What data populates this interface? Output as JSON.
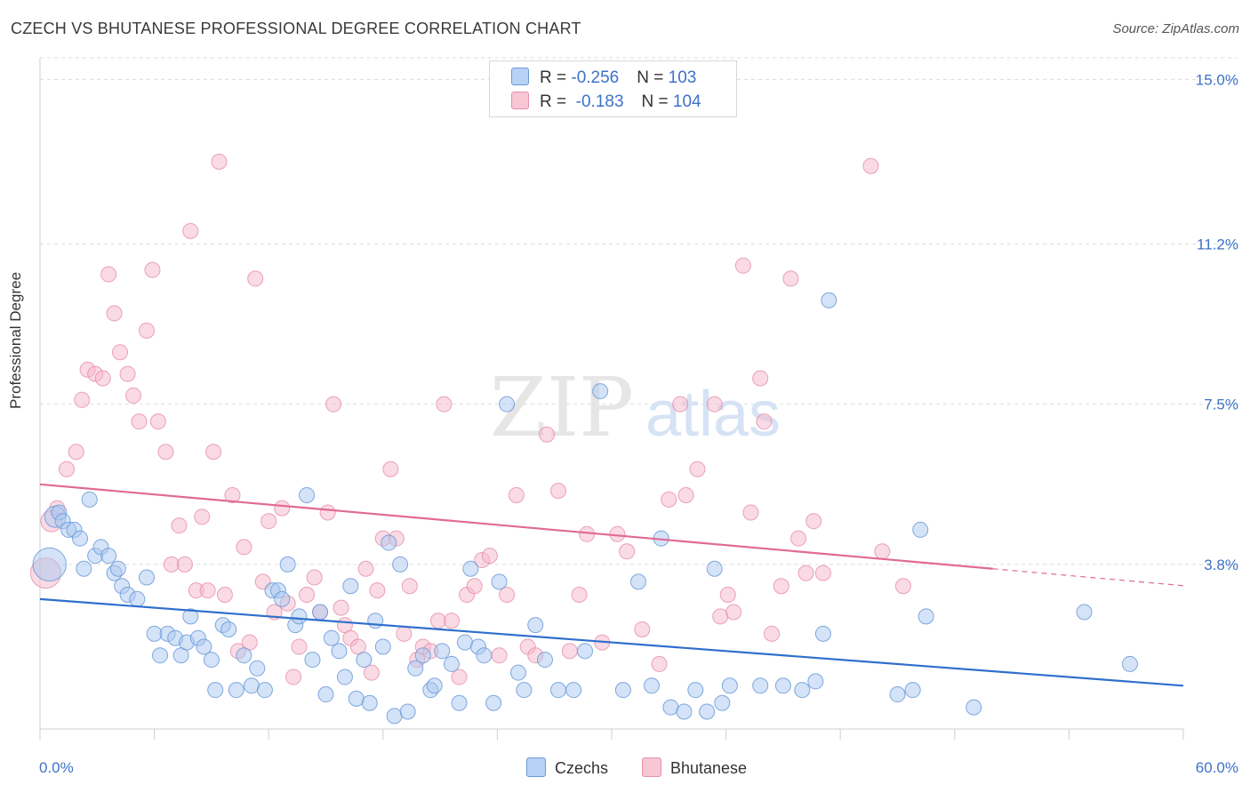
{
  "title": "CZECH VS BHUTANESE PROFESSIONAL DEGREE CORRELATION CHART",
  "source": "Source: ZipAtlas.com",
  "watermark": {
    "zip": "ZIP",
    "atlas": "atlas"
  },
  "legend": {
    "czech": {
      "r_label": "R = ",
      "r_value": "-0.256",
      "n_label": "N = ",
      "n_value": "103"
    },
    "bhutanese": {
      "r_label": "R = ",
      "r_value": " -0.183",
      "n_label": "N = ",
      "n_value": "104"
    }
  },
  "bottom_legend": {
    "czech": "Czechs",
    "bhutanese": "Bhutanese"
  },
  "colors": {
    "czech_fill": "#aac8f0",
    "czech_stroke": "#6b9ad8",
    "czech_line": "#2f6fcc",
    "bhutanese_fill": "#f5b8cb",
    "bhutanese_stroke": "#e890ac",
    "bhutanese_line": "#e06a93",
    "axis_label": "#3d72c8",
    "grid": "#dddddd"
  },
  "chart_data": {
    "type": "scatter",
    "title": "CZECH VS BHUTANESE PROFESSIONAL DEGREE CORRELATION CHART",
    "xlabel": "",
    "ylabel": "Professional Degree",
    "xlim": [
      0,
      60
    ],
    "ylim": [
      0,
      15.5
    ],
    "x_tick_labels": [
      "0.0%",
      "60.0%"
    ],
    "y_ticks": [
      3.8,
      7.5,
      11.2,
      15.0
    ],
    "y_tick_labels": [
      "3.8%",
      "7.5%",
      "11.2%",
      "15.0%"
    ],
    "grid": "horizontal dashed",
    "series": [
      {
        "name": "Czechs",
        "trend": {
          "x0": 0,
          "y0": 3.0,
          "x1": 60,
          "y1": 1.0
        },
        "points": [
          [
            0.5,
            3.8,
            2.2
          ],
          [
            0.8,
            4.9,
            1.4
          ],
          [
            1.0,
            5.0,
            1
          ],
          [
            1.2,
            4.8,
            1
          ],
          [
            1.5,
            4.6,
            1
          ],
          [
            1.8,
            4.6,
            1
          ],
          [
            2.1,
            4.4,
            1
          ],
          [
            2.3,
            3.7,
            1
          ],
          [
            2.6,
            5.3,
            1
          ],
          [
            2.9,
            4.0,
            1
          ],
          [
            3.2,
            4.2,
            1
          ],
          [
            3.6,
            4.0,
            1
          ],
          [
            3.9,
            3.6,
            1
          ],
          [
            4.1,
            3.7,
            1
          ],
          [
            4.3,
            3.3,
            1
          ],
          [
            4.6,
            3.1,
            1
          ],
          [
            5.1,
            3.0,
            1
          ],
          [
            5.6,
            3.5,
            1
          ],
          [
            6.0,
            2.2,
            1
          ],
          [
            6.3,
            1.7,
            1
          ],
          [
            6.7,
            2.2,
            1
          ],
          [
            7.1,
            2.1,
            1
          ],
          [
            7.4,
            1.7,
            1
          ],
          [
            7.7,
            2.0,
            1
          ],
          [
            7.9,
            2.6,
            1
          ],
          [
            8.3,
            2.1,
            1
          ],
          [
            8.6,
            1.9,
            1
          ],
          [
            9.0,
            1.6,
            1
          ],
          [
            9.2,
            0.9,
            1
          ],
          [
            9.6,
            2.4,
            1
          ],
          [
            9.9,
            2.3,
            1
          ],
          [
            10.3,
            0.9,
            1
          ],
          [
            10.7,
            1.7,
            1
          ],
          [
            11.1,
            1.0,
            1
          ],
          [
            11.4,
            1.4,
            1
          ],
          [
            11.8,
            0.9,
            1
          ],
          [
            12.2,
            3.2,
            1
          ],
          [
            12.5,
            3.2,
            1
          ],
          [
            12.7,
            3.0,
            1
          ],
          [
            13.0,
            3.8,
            1
          ],
          [
            13.4,
            2.4,
            1
          ],
          [
            13.6,
            2.6,
            1
          ],
          [
            14.0,
            5.4,
            1
          ],
          [
            14.3,
            1.6,
            1
          ],
          [
            14.7,
            2.7,
            1
          ],
          [
            15.0,
            0.8,
            1
          ],
          [
            15.3,
            2.1,
            1
          ],
          [
            15.7,
            1.8,
            1
          ],
          [
            16.0,
            1.2,
            1
          ],
          [
            16.3,
            3.3,
            1
          ],
          [
            16.6,
            0.7,
            1
          ],
          [
            17.0,
            1.6,
            1
          ],
          [
            17.3,
            0.6,
            1
          ],
          [
            17.6,
            2.5,
            1
          ],
          [
            18.0,
            1.9,
            1
          ],
          [
            18.3,
            4.3,
            1
          ],
          [
            18.6,
            0.3,
            1
          ],
          [
            18.9,
            3.8,
            1
          ],
          [
            19.3,
            0.4,
            1
          ],
          [
            19.7,
            1.4,
            1
          ],
          [
            20.1,
            1.7,
            1
          ],
          [
            20.5,
            0.9,
            1
          ],
          [
            20.7,
            1.0,
            1
          ],
          [
            21.1,
            1.8,
            1
          ],
          [
            21.6,
            1.5,
            1
          ],
          [
            22.0,
            0.6,
            1
          ],
          [
            22.3,
            2.0,
            1
          ],
          [
            22.6,
            3.7,
            1
          ],
          [
            23.0,
            1.9,
            1
          ],
          [
            23.3,
            1.7,
            1
          ],
          [
            23.8,
            0.6,
            1
          ],
          [
            24.1,
            3.4,
            1
          ],
          [
            24.5,
            7.5,
            1
          ],
          [
            25.1,
            1.3,
            1
          ],
          [
            25.4,
            0.9,
            1
          ],
          [
            26.0,
            2.4,
            1
          ],
          [
            26.5,
            1.6,
            1
          ],
          [
            27.2,
            0.9,
            1
          ],
          [
            28.0,
            0.9,
            1
          ],
          [
            28.6,
            1.8,
            1
          ],
          [
            29.4,
            7.8,
            1
          ],
          [
            30.6,
            0.9,
            1
          ],
          [
            31.4,
            3.4,
            1
          ],
          [
            32.1,
            1.0,
            1
          ],
          [
            32.6,
            4.4,
            1
          ],
          [
            33.1,
            0.5,
            1
          ],
          [
            33.8,
            0.4,
            1
          ],
          [
            34.4,
            0.9,
            1
          ],
          [
            35.0,
            0.4,
            1
          ],
          [
            35.4,
            3.7,
            1
          ],
          [
            35.8,
            0.6,
            1
          ],
          [
            36.2,
            1.0,
            1
          ],
          [
            37.8,
            1.0,
            1
          ],
          [
            39.0,
            1.0,
            1
          ],
          [
            40.0,
            0.9,
            1
          ],
          [
            40.7,
            1.1,
            1
          ],
          [
            41.1,
            2.2,
            1
          ],
          [
            41.4,
            9.9,
            1
          ],
          [
            45.0,
            0.8,
            1
          ],
          [
            45.8,
            0.9,
            1
          ],
          [
            46.2,
            4.6,
            1
          ],
          [
            46.5,
            2.6,
            1
          ],
          [
            49.0,
            0.5,
            1
          ],
          [
            54.8,
            2.7,
            1
          ],
          [
            57.2,
            1.5,
            1
          ]
        ]
      },
      {
        "name": "Bhutanese",
        "trend": {
          "x0": 0,
          "y0": 5.65,
          "x1": 50,
          "y1": 3.7
        },
        "points": [
          [
            0.3,
            3.6,
            2.0
          ],
          [
            0.6,
            4.8,
            1.4
          ],
          [
            0.9,
            5.1,
            1
          ],
          [
            1.4,
            6.0,
            1
          ],
          [
            1.9,
            6.4,
            1
          ],
          [
            2.2,
            7.6,
            1
          ],
          [
            2.5,
            8.3,
            1
          ],
          [
            2.9,
            8.2,
            1
          ],
          [
            3.3,
            8.1,
            1
          ],
          [
            3.6,
            10.5,
            1
          ],
          [
            3.9,
            9.6,
            1
          ],
          [
            4.2,
            8.7,
            1
          ],
          [
            4.6,
            8.2,
            1
          ],
          [
            4.9,
            7.7,
            1
          ],
          [
            5.2,
            7.1,
            1
          ],
          [
            5.6,
            9.2,
            1
          ],
          [
            5.9,
            10.6,
            1
          ],
          [
            6.2,
            7.1,
            1
          ],
          [
            6.6,
            6.4,
            1
          ],
          [
            6.9,
            3.8,
            1
          ],
          [
            7.3,
            4.7,
            1
          ],
          [
            7.6,
            3.8,
            1
          ],
          [
            7.9,
            11.5,
            1
          ],
          [
            8.2,
            3.2,
            1
          ],
          [
            8.5,
            4.9,
            1
          ],
          [
            8.8,
            3.2,
            1
          ],
          [
            9.1,
            6.4,
            1
          ],
          [
            9.4,
            13.1,
            1
          ],
          [
            9.7,
            3.1,
            1
          ],
          [
            10.1,
            5.4,
            1
          ],
          [
            10.4,
            1.8,
            1
          ],
          [
            10.7,
            4.2,
            1
          ],
          [
            11.0,
            2.0,
            1
          ],
          [
            11.3,
            10.4,
            1
          ],
          [
            11.7,
            3.4,
            1
          ],
          [
            12.0,
            4.8,
            1
          ],
          [
            12.3,
            2.7,
            1
          ],
          [
            12.7,
            5.1,
            1
          ],
          [
            13.0,
            2.9,
            1
          ],
          [
            13.3,
            1.2,
            1
          ],
          [
            13.6,
            1.9,
            1
          ],
          [
            14.0,
            3.1,
            1
          ],
          [
            14.4,
            3.5,
            1
          ],
          [
            14.7,
            2.7,
            1
          ],
          [
            15.1,
            5.0,
            1
          ],
          [
            15.4,
            7.5,
            1
          ],
          [
            15.8,
            2.8,
            1
          ],
          [
            16.0,
            2.4,
            1
          ],
          [
            16.3,
            2.1,
            1
          ],
          [
            16.7,
            1.9,
            1
          ],
          [
            17.1,
            3.7,
            1
          ],
          [
            17.4,
            1.3,
            1
          ],
          [
            17.7,
            3.2,
            1
          ],
          [
            18.0,
            4.4,
            1
          ],
          [
            18.4,
            6.0,
            1
          ],
          [
            18.7,
            4.4,
            1
          ],
          [
            19.1,
            2.2,
            1
          ],
          [
            19.4,
            3.3,
            1
          ],
          [
            19.8,
            1.6,
            1
          ],
          [
            20.1,
            1.9,
            1
          ],
          [
            20.5,
            1.8,
            1
          ],
          [
            20.9,
            2.5,
            1
          ],
          [
            21.2,
            7.5,
            1
          ],
          [
            21.6,
            2.5,
            1
          ],
          [
            22.0,
            1.2,
            1
          ],
          [
            22.4,
            3.1,
            1
          ],
          [
            22.8,
            3.3,
            1
          ],
          [
            23.2,
            3.9,
            1
          ],
          [
            23.6,
            4.0,
            1
          ],
          [
            24.1,
            1.7,
            1
          ],
          [
            24.5,
            3.1,
            1
          ],
          [
            25.0,
            5.4,
            1
          ],
          [
            25.6,
            1.9,
            1
          ],
          [
            26.0,
            1.7,
            1
          ],
          [
            26.6,
            6.8,
            1
          ],
          [
            27.2,
            5.5,
            1
          ],
          [
            27.8,
            1.8,
            1
          ],
          [
            28.3,
            3.1,
            1
          ],
          [
            28.7,
            4.5,
            1
          ],
          [
            29.5,
            2.0,
            1
          ],
          [
            30.3,
            4.5,
            1
          ],
          [
            30.8,
            4.1,
            1
          ],
          [
            31.6,
            2.3,
            1
          ],
          [
            32.5,
            1.5,
            1
          ],
          [
            33.0,
            5.3,
            1
          ],
          [
            33.6,
            7.5,
            1
          ],
          [
            33.9,
            5.4,
            1
          ],
          [
            34.5,
            6.0,
            1
          ],
          [
            35.4,
            7.5,
            1
          ],
          [
            35.7,
            2.6,
            1
          ],
          [
            36.1,
            3.1,
            1
          ],
          [
            36.4,
            2.7,
            1
          ],
          [
            36.9,
            10.7,
            1
          ],
          [
            37.3,
            5.0,
            1
          ],
          [
            37.8,
            8.1,
            1
          ],
          [
            38.0,
            7.1,
            1
          ],
          [
            38.4,
            2.2,
            1
          ],
          [
            38.9,
            3.3,
            1
          ],
          [
            39.4,
            10.4,
            1
          ],
          [
            39.8,
            4.4,
            1
          ],
          [
            40.2,
            3.6,
            1
          ],
          [
            40.6,
            4.8,
            1
          ],
          [
            41.1,
            3.6,
            1
          ],
          [
            43.6,
            13.0,
            1
          ],
          [
            44.2,
            4.1,
            1
          ],
          [
            45.3,
            3.3,
            1
          ]
        ]
      }
    ]
  }
}
